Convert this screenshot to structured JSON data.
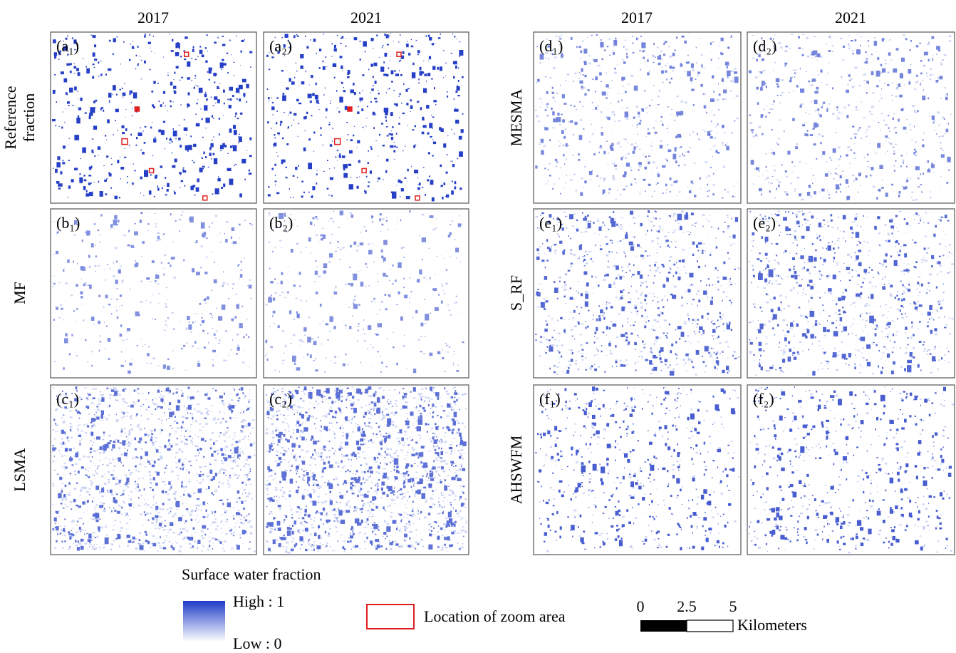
{
  "column_headers": [
    "2017",
    "2021",
    "2017",
    "2021"
  ],
  "row_labels": [
    [
      "Reference",
      "fraction"
    ],
    [
      "MF"
    ],
    [
      "LSMA"
    ],
    [
      "MESMA"
    ],
    [
      "S_RF"
    ],
    [
      "AHSWFM"
    ]
  ],
  "panels": [
    "(a₁)",
    "(a₂)",
    "(b₁)",
    "(b₂)",
    "(c₁)",
    "(c₂)",
    "(d₁)",
    "(d₂)",
    "(e₁)",
    "(e₂)",
    "(f₁)",
    "(f₂)"
  ],
  "legend": {
    "title": "Surface water fraction",
    "high": "High : 1",
    "low": "Low : 0",
    "zoom": "Location of zoom area"
  },
  "scale_bar": {
    "ticks": [
      "0",
      "2.5",
      "5"
    ],
    "unit": "Kilometers"
  }
}
